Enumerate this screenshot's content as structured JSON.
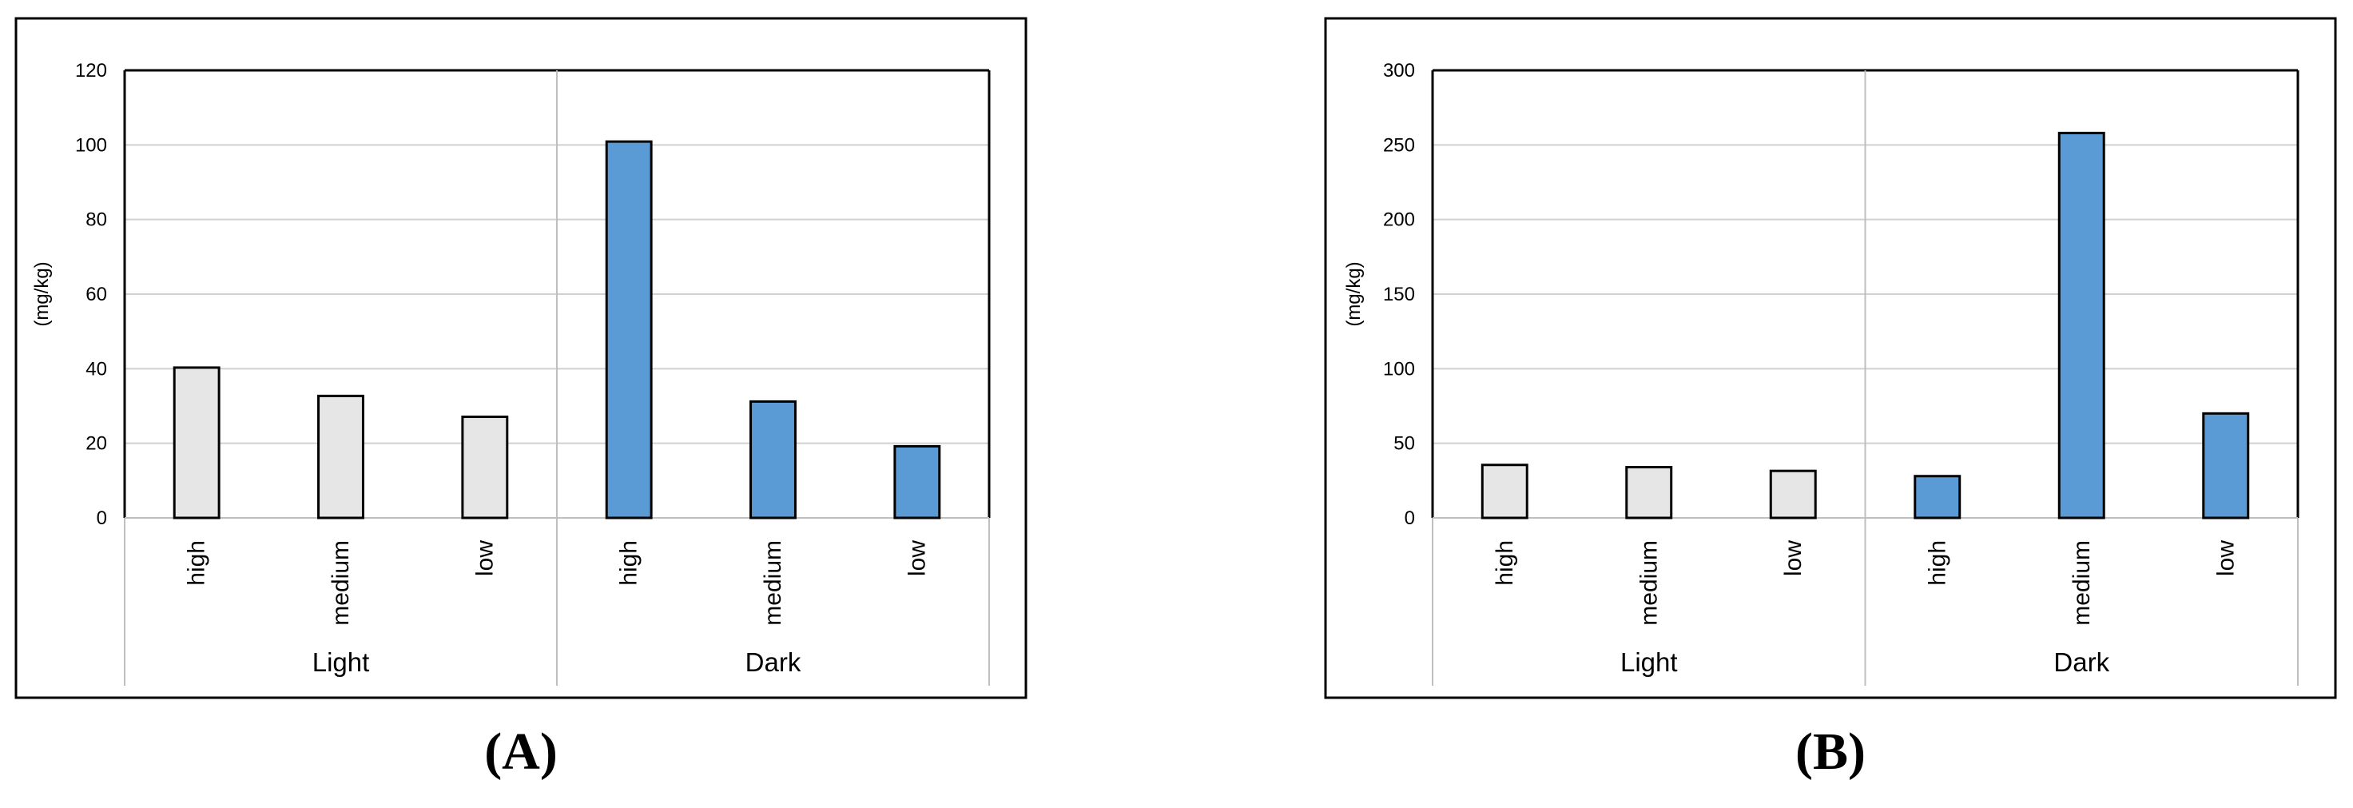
{
  "chart_data": [
    {
      "type": "bar",
      "panel_label": "(A)",
      "ylabel": "(mg/kg)",
      "ylim": [
        0,
        120
      ],
      "yticks": [
        0,
        20,
        40,
        60,
        80,
        100,
        120
      ],
      "groups": [
        {
          "name": "Light",
          "categories": [
            "high",
            "medium",
            "low"
          ],
          "values": [
            40.3,
            32.7,
            27.1
          ],
          "color": "#e6e6e6"
        },
        {
          "name": "Dark",
          "categories": [
            "high",
            "medium",
            "low"
          ],
          "values": [
            100.9,
            31.2,
            19.2
          ],
          "color": "#5b9bd5"
        }
      ],
      "grid": true
    },
    {
      "type": "bar",
      "panel_label": "(B)",
      "ylabel": "(mg/kg)",
      "ylim": [
        0,
        300
      ],
      "yticks": [
        0,
        50,
        100,
        150,
        200,
        250,
        300
      ],
      "groups": [
        {
          "name": "Light",
          "categories": [
            "high",
            "medium",
            "low"
          ],
          "values": [
            35.5,
            34.0,
            31.5
          ],
          "color": "#e6e6e6"
        },
        {
          "name": "Dark",
          "categories": [
            "high",
            "medium",
            "low"
          ],
          "values": [
            28.0,
            258.0,
            70.0
          ],
          "color": "#5b9bd5"
        }
      ],
      "grid": true
    }
  ]
}
